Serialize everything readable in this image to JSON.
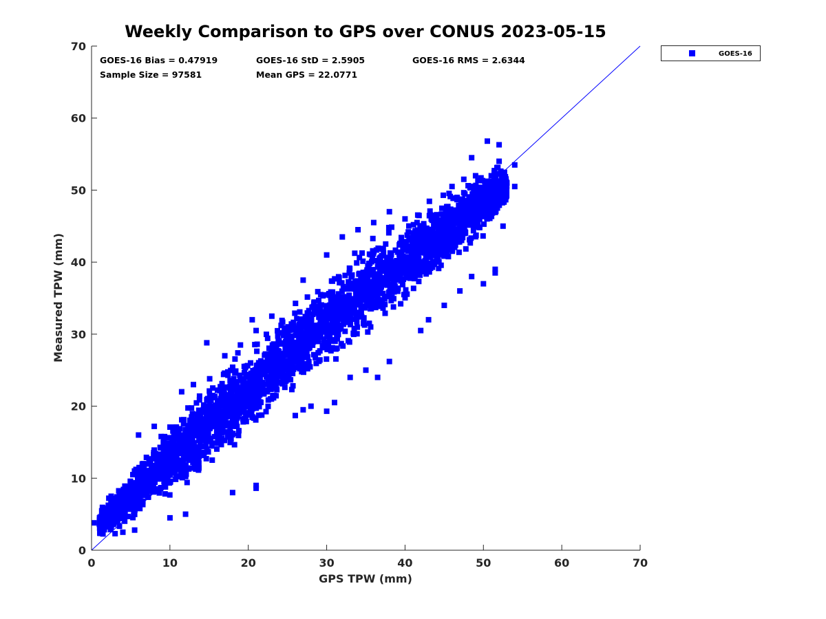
{
  "chart_data": {
    "type": "scatter",
    "title": "Weekly Comparison to GPS over CONUS 2023-05-15",
    "xlabel": "GPS TPW (mm)",
    "ylabel": "Measured TPW (mm)",
    "xlim": [
      0,
      70
    ],
    "ylim": [
      0,
      70
    ],
    "xticks": [
      0,
      10,
      20,
      30,
      40,
      50,
      60,
      70
    ],
    "yticks": [
      0,
      10,
      20,
      30,
      40,
      50,
      60,
      70
    ],
    "xtick_labels": [
      "0",
      "10",
      "20",
      "30",
      "40",
      "50",
      "60",
      "70"
    ],
    "ytick_labels": [
      "0",
      "10",
      "20",
      "30",
      "40",
      "50",
      "60",
      "70"
    ],
    "grid": false,
    "legend_position": "outside-top-right",
    "series": [
      {
        "name": "GOES-16",
        "color": "#0000ff",
        "marker": "square",
        "dense_band": [
          [
            1,
            3.8,
            2.0,
            7.5
          ],
          [
            3,
            5.5,
            2.3,
            11.0
          ],
          [
            5,
            7.5,
            2.8,
            13.5
          ],
          [
            8,
            10.5,
            4.5,
            17.0
          ],
          [
            11,
            13.5,
            5.0,
            20.0
          ],
          [
            14,
            16.5,
            7.0,
            23.0
          ],
          [
            17,
            19.5,
            9.0,
            26.0
          ],
          [
            20,
            22.0,
            11.0,
            28.5
          ],
          [
            23,
            25.0,
            14.0,
            31.5
          ],
          [
            26,
            28.0,
            18.0,
            35.0
          ],
          [
            29,
            31.0,
            21.0,
            39.0
          ],
          [
            32,
            33.5,
            24.0,
            42.0
          ],
          [
            35,
            36.0,
            27.0,
            45.0
          ],
          [
            38,
            38.5,
            30.0,
            47.0
          ],
          [
            41,
            41.0,
            32.0,
            48.5
          ],
          [
            44,
            43.5,
            34.0,
            50.0
          ],
          [
            47,
            46.0,
            37.0,
            52.0
          ],
          [
            50,
            48.5,
            38.5,
            53.0
          ],
          [
            53,
            50.5,
            44.0,
            53.5
          ]
        ],
        "points": [
          [
            0.3,
            3.8
          ],
          [
            1.0,
            3.6
          ],
          [
            2.0,
            4.2
          ],
          [
            2.5,
            7.5
          ],
          [
            3.0,
            2.3
          ],
          [
            4.0,
            2.5
          ],
          [
            6.0,
            16.0
          ],
          [
            5.5,
            2.8
          ],
          [
            8.0,
            17.2
          ],
          [
            10.0,
            4.5
          ],
          [
            12.0,
            5.0
          ],
          [
            11.5,
            22.0
          ],
          [
            14.7,
            28.8
          ],
          [
            13.0,
            23.0
          ],
          [
            18.0,
            8.0
          ],
          [
            21.0,
            8.6
          ],
          [
            21.0,
            9.0
          ],
          [
            17.0,
            27.0
          ],
          [
            19.0,
            28.5
          ],
          [
            21.0,
            30.5
          ],
          [
            20.5,
            32.0
          ],
          [
            23.0,
            32.5
          ],
          [
            26.0,
            18.7
          ],
          [
            27.0,
            19.5
          ],
          [
            28.0,
            20.0
          ],
          [
            30.0,
            19.3
          ],
          [
            31.0,
            20.5
          ],
          [
            27.0,
            37.5
          ],
          [
            30.0,
            41.0
          ],
          [
            32.0,
            43.5
          ],
          [
            34.0,
            44.5
          ],
          [
            36.0,
            45.5
          ],
          [
            38.0,
            47.0
          ],
          [
            40.0,
            46.0
          ],
          [
            33.0,
            24.0
          ],
          [
            35.0,
            25.0
          ],
          [
            36.5,
            24.0
          ],
          [
            38.0,
            26.2
          ],
          [
            42.0,
            30.5
          ],
          [
            43.0,
            32.0
          ],
          [
            45.0,
            34.0
          ],
          [
            47.0,
            36.0
          ],
          [
            48.5,
            38.0
          ],
          [
            50.0,
            37.0
          ],
          [
            51.5,
            38.5
          ],
          [
            51.5,
            39.0
          ],
          [
            52.5,
            45.0
          ],
          [
            51.0,
            52.0
          ],
          [
            52.0,
            54.0
          ],
          [
            52.0,
            56.3
          ],
          [
            50.5,
            56.8
          ],
          [
            48.5,
            54.5
          ],
          [
            49.0,
            52.0
          ],
          [
            46.0,
            50.5
          ],
          [
            47.5,
            51.5
          ],
          [
            50.5,
            47.0
          ],
          [
            53.0,
            51.0
          ],
          [
            54.0,
            53.5
          ],
          [
            54.0,
            50.5
          ]
        ]
      }
    ],
    "reference_line": {
      "type": "one-to-one",
      "from": [
        0,
        0
      ],
      "to": [
        70,
        70
      ]
    },
    "annotations": [
      "GOES-16 Bias = 0.47919",
      "GOES-16 StD = 2.5905",
      "GOES-16 RMS = 2.6344",
      "Sample Size = 97581",
      "Mean GPS = 22.0771"
    ],
    "colors": {
      "series": "#0000ff",
      "axis": "#262626",
      "background": "#ffffff"
    }
  }
}
